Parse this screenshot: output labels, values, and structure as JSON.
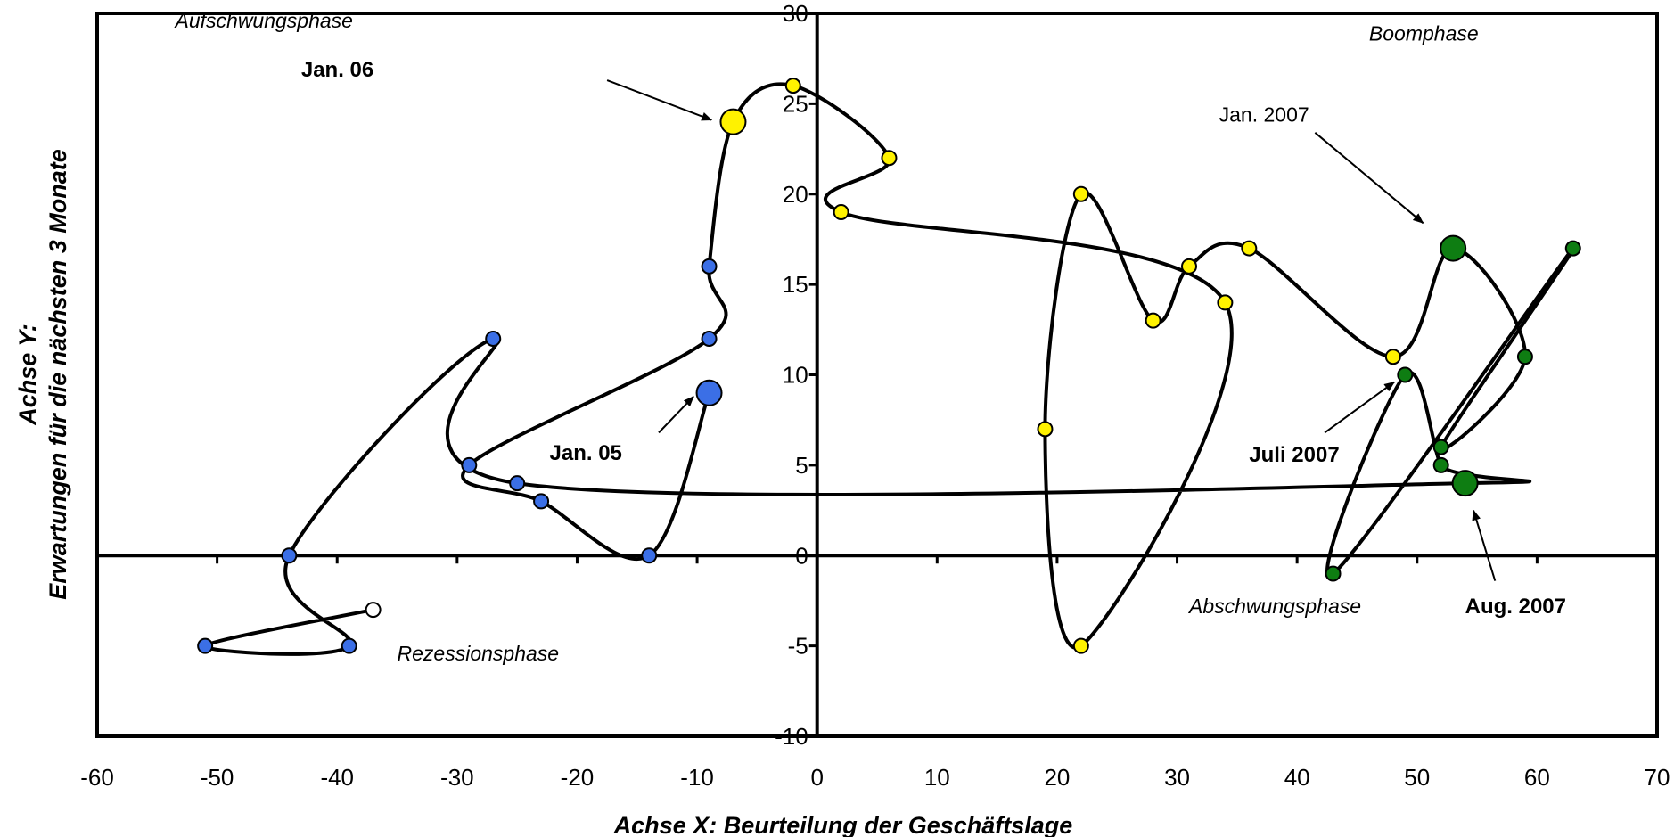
{
  "chart_data": {
    "type": "scatter",
    "xlabel": "Achse X: Beurteilung der Geschäftslage",
    "ylabel_line1": "Achse Y:",
    "ylabel_line2": "Erwartungen für die nächsten 3 Monate",
    "xlim": [
      -60,
      70
    ],
    "ylim": [
      -10,
      30
    ],
    "xticks": [
      -60,
      -50,
      -40,
      -30,
      -20,
      -10,
      0,
      10,
      20,
      30,
      40,
      50,
      60,
      70
    ],
    "yticks": [
      -10,
      -5,
      0,
      5,
      10,
      15,
      20,
      25,
      30
    ],
    "grid": false,
    "legend": "none",
    "colors": {
      "blue": "#3b6fe6",
      "white": "#ffffff",
      "yellow": "#fff200",
      "green": "#0e7d12",
      "line": "#000000"
    },
    "points": [
      {
        "x": -9,
        "y": 9,
        "color": "blue",
        "large": true
      },
      {
        "x": -14,
        "y": 0,
        "color": "blue"
      },
      {
        "x": -23,
        "y": 3,
        "color": "blue"
      },
      {
        "x": -29,
        "y": 5,
        "color": "blue"
      },
      {
        "x": -9,
        "y": 12,
        "color": "blue"
      },
      {
        "x": -9,
        "y": 16,
        "color": "blue"
      },
      {
        "x": -7,
        "y": 24,
        "color": "yellow",
        "large": true
      },
      {
        "x": -2,
        "y": 26,
        "color": "yellow"
      },
      {
        "x": 6,
        "y": 22,
        "color": "yellow"
      },
      {
        "x": 2,
        "y": 19,
        "color": "yellow"
      },
      {
        "x": 34,
        "y": 14,
        "color": "yellow"
      },
      {
        "x": 22,
        "y": -5,
        "color": "yellow"
      },
      {
        "x": 19,
        "y": 7,
        "color": "yellow"
      },
      {
        "x": 22,
        "y": 20,
        "color": "yellow"
      },
      {
        "x": 28,
        "y": 13,
        "color": "yellow"
      },
      {
        "x": 31,
        "y": 16,
        "color": "yellow"
      },
      {
        "x": 36,
        "y": 17,
        "color": "yellow"
      },
      {
        "x": 48,
        "y": 11,
        "color": "yellow"
      },
      {
        "x": 53,
        "y": 17,
        "color": "green",
        "large": true
      },
      {
        "x": 59,
        "y": 11,
        "color": "green"
      },
      {
        "x": 52,
        "y": 6,
        "color": "green"
      },
      {
        "x": 63,
        "y": 17,
        "color": "green"
      },
      {
        "x": 43,
        "y": -1,
        "color": "green"
      },
      {
        "x": 49,
        "y": 10,
        "color": "green"
      },
      {
        "x": 52,
        "y": 5,
        "color": "green"
      },
      {
        "x": 54,
        "y": 4,
        "color": "green",
        "large": true
      },
      {
        "x": -25,
        "y": 4,
        "color": "blue"
      },
      {
        "x": -27,
        "y": 12,
        "color": "blue"
      },
      {
        "x": -44,
        "y": 0,
        "color": "blue"
      },
      {
        "x": -39,
        "y": -5,
        "color": "blue"
      },
      {
        "x": -51,
        "y": -5,
        "color": "blue"
      },
      {
        "x": -37,
        "y": -3,
        "color": "white"
      }
    ],
    "path_order_note": "",
    "phases": [
      {
        "label": "Aufschwungsphase",
        "x": -53.5,
        "y": 29.2
      },
      {
        "label": "Boomphase",
        "x": 46,
        "y": 28.5
      },
      {
        "label": "Abschwungsphase",
        "x": 31,
        "y": -3.2
      },
      {
        "label": "Rezessionsphase",
        "x": -35,
        "y": -5.8
      }
    ],
    "annotations": [
      {
        "label": "Jan. 06",
        "bold": true,
        "x": -43,
        "y": 26.5,
        "arrow_from": [
          -17.5,
          26.3
        ],
        "arrow_to": [
          -8.8,
          24.1
        ]
      },
      {
        "label": "Jan. 05",
        "bold": true,
        "x": -22.3,
        "y": 5.3,
        "arrow_from": [
          -13.2,
          6.8
        ],
        "arrow_to": [
          -10.3,
          8.8
        ]
      },
      {
        "label": "Jan. 2007",
        "bold": false,
        "x": 33.5,
        "y": 24,
        "arrow_from": [
          41.5,
          23.4
        ],
        "arrow_to": [
          50.5,
          18.4
        ]
      },
      {
        "label": "Juli 2007",
        "bold": true,
        "x": 36,
        "y": 5.2,
        "arrow_from": [
          42.3,
          6.8
        ],
        "arrow_to": [
          48.1,
          9.6
        ]
      },
      {
        "label": "Aug. 2007",
        "bold": true,
        "x": 54,
        "y": -3.2,
        "arrow_from": [
          56.5,
          -1.4
        ],
        "arrow_to": [
          54.7,
          2.5
        ]
      }
    ]
  }
}
